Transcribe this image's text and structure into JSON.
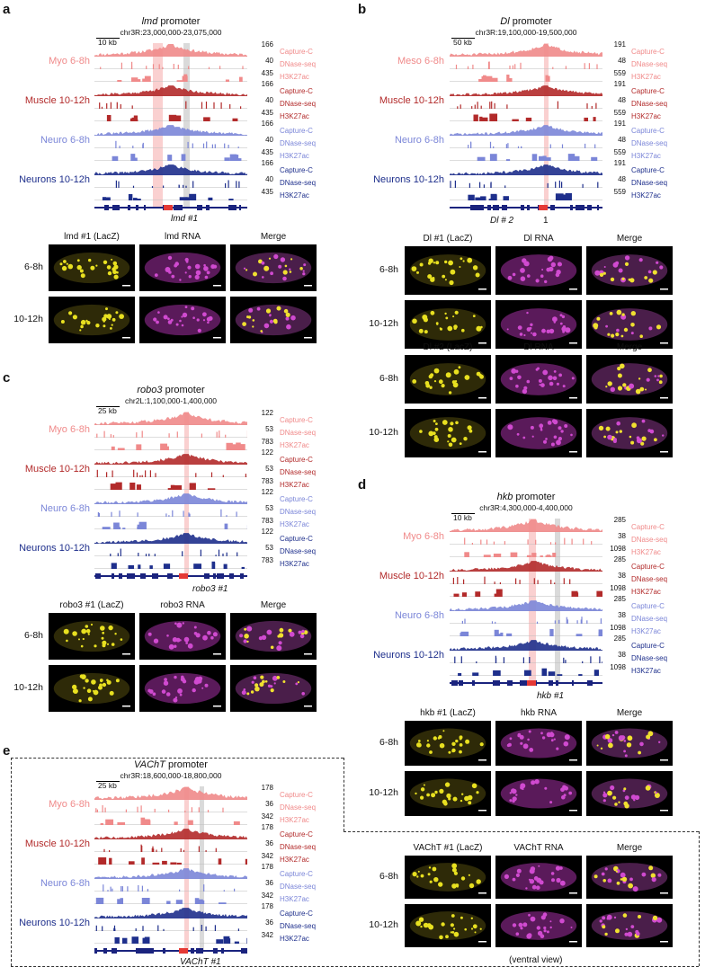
{
  "panels": {
    "a": {
      "letter": "a",
      "title_gene": "lmd",
      "title_suffix": " promoter",
      "coords": "chr3R:23,000,000-23,075,000",
      "scale": "10 kb",
      "enhancer_label": "lmd #1",
      "rows": [
        {
          "name": "Myo 6-8h",
          "color": "#f08a8a",
          "tracks": [
            {
              "label": "Capture-C",
              "max": "166"
            },
            {
              "label": "DNase-seq",
              "max": "40"
            },
            {
              "label": "H3K27ac",
              "max": "435"
            }
          ]
        },
        {
          "name": "Muscle 10-12h",
          "color": "#b22a2a",
          "tracks": [
            {
              "label": "Capture-C",
              "max": "166"
            },
            {
              "label": "DNase-seq",
              "max": "40"
            },
            {
              "label": "H3K27ac",
              "max": "435"
            }
          ]
        },
        {
          "name": "Neuro 6-8h",
          "color": "#7b86d8",
          "tracks": [
            {
              "label": "Capture-C",
              "max": "166"
            },
            {
              "label": "DNase-seq",
              "max": "40"
            },
            {
              "label": "H3K27ac",
              "max": "435"
            }
          ]
        },
        {
          "name": "Neurons 10-12h",
          "color": "#1e2f8c",
          "tracks": [
            {
              "label": "Capture-C",
              "max": "166"
            },
            {
              "label": "DNase-seq",
              "max": "40"
            },
            {
              "label": "H3K27ac",
              "max": "435"
            }
          ]
        }
      ],
      "images": {
        "headers": [
          "lmd #1 (LacZ)",
          "lmd RNA",
          "Merge"
        ],
        "times": [
          "6-8h",
          "10-12h"
        ]
      }
    },
    "b": {
      "letter": "b",
      "title_gene": "Dl",
      "title_suffix": " promoter",
      "coords": "chr3R:19,100,000-19,500,000",
      "scale": "50 kb",
      "enhancer_labels": [
        "Dl # 2",
        "1"
      ],
      "rows": [
        {
          "name": "Meso 6-8h",
          "color": "#f08a8a",
          "tracks": [
            {
              "label": "Capture-C",
              "max": "191"
            },
            {
              "label": "DNase-seq",
              "max": "48"
            },
            {
              "label": "H3K27ac",
              "max": "559"
            }
          ]
        },
        {
          "name": "Muscle 10-12h",
          "color": "#b22a2a",
          "tracks": [
            {
              "label": "Capture-C",
              "max": "191"
            },
            {
              "label": "DNase-seq",
              "max": "48"
            },
            {
              "label": "H3K27ac",
              "max": "559"
            }
          ]
        },
        {
          "name": "Neuro 6-8h",
          "color": "#7b86d8",
          "tracks": [
            {
              "label": "Capture-C",
              "max": "191"
            },
            {
              "label": "DNase-seq",
              "max": "48"
            },
            {
              "label": "H3K27ac",
              "max": "559"
            }
          ]
        },
        {
          "name": "Neurons 10-12h",
          "color": "#1e2f8c",
          "tracks": [
            {
              "label": "Capture-C",
              "max": "191"
            },
            {
              "label": "DNase-seq",
              "max": "48"
            },
            {
              "label": "H3K27ac",
              "max": "559"
            }
          ]
        }
      ],
      "images1": {
        "headers": [
          "Dl #1 (LacZ)",
          "Dl RNA",
          "Merge"
        ],
        "times": [
          "6-8h",
          "10-12h"
        ]
      },
      "images2": {
        "headers": [
          "Dl #2 (LacZ)",
          "Dl RNA",
          "Merge"
        ],
        "times": [
          "6-8h",
          "10-12h"
        ]
      }
    },
    "c": {
      "letter": "c",
      "title_gene": "robo3",
      "title_suffix": " promoter",
      "coords": "chr2L:1,100,000-1,400,000",
      "scale": "25 kb",
      "enhancer_label": "robo3 #1",
      "rows": [
        {
          "name": "Myo 6-8h",
          "color": "#f08a8a",
          "tracks": [
            {
              "label": "Capture-C",
              "max": "122"
            },
            {
              "label": "DNase-seq",
              "max": "53"
            },
            {
              "label": "H3K27ac",
              "max": "783"
            }
          ]
        },
        {
          "name": "Muscle 10-12h",
          "color": "#b22a2a",
          "tracks": [
            {
              "label": "Capture-C",
              "max": "122"
            },
            {
              "label": "DNase-seq",
              "max": "53"
            },
            {
              "label": "H3K27ac",
              "max": "783"
            }
          ]
        },
        {
          "name": "Neuro 6-8h",
          "color": "#7b86d8",
          "tracks": [
            {
              "label": "Capture-C",
              "max": "122"
            },
            {
              "label": "DNase-seq",
              "max": "53"
            },
            {
              "label": "H3K27ac",
              "max": "783"
            }
          ]
        },
        {
          "name": "Neurons 10-12h",
          "color": "#1e2f8c",
          "tracks": [
            {
              "label": "Capture-C",
              "max": "122"
            },
            {
              "label": "DNase-seq",
              "max": "53"
            },
            {
              "label": "H3K27ac",
              "max": "783"
            }
          ]
        }
      ],
      "images": {
        "headers": [
          "robo3 #1 (LacZ)",
          "robo3 RNA",
          "Merge"
        ],
        "times": [
          "6-8h",
          "10-12h"
        ]
      }
    },
    "d": {
      "letter": "d",
      "title_gene": "hkb",
      "title_suffix": " promoter",
      "coords": "chr3R:4,300,000-4,400,000",
      "scale": "10 kb",
      "enhancer_label": "hkb #1",
      "rows": [
        {
          "name": "Myo 6-8h",
          "color": "#f08a8a",
          "tracks": [
            {
              "label": "Capture-C",
              "max": "285"
            },
            {
              "label": "DNase-seq",
              "max": "38"
            },
            {
              "label": "H3K27ac",
              "max": "1098"
            }
          ]
        },
        {
          "name": "Muscle 10-12h",
          "color": "#b22a2a",
          "tracks": [
            {
              "label": "Capture-C",
              "max": "285"
            },
            {
              "label": "DNase-seq",
              "max": "38"
            },
            {
              "label": "H3K27ac",
              "max": "1098"
            }
          ]
        },
        {
          "name": "Neuro 6-8h",
          "color": "#7b86d8",
          "tracks": [
            {
              "label": "Capture-C",
              "max": "285"
            },
            {
              "label": "DNase-seq",
              "max": "38"
            },
            {
              "label": "H3K27ac",
              "max": "1098"
            }
          ]
        },
        {
          "name": "Neurons 10-12h",
          "color": "#1e2f8c",
          "tracks": [
            {
              "label": "Capture-C",
              "max": "285"
            },
            {
              "label": "DNase-seq",
              "max": "38"
            },
            {
              "label": "H3K27ac",
              "max": "1098"
            }
          ]
        }
      ],
      "images": {
        "headers": [
          "hkb #1 (LacZ)",
          "hkb RNA",
          "Merge"
        ],
        "times": [
          "6-8h",
          "10-12h"
        ]
      }
    },
    "e": {
      "letter": "e",
      "title_gene": "VAChT",
      "title_suffix": " promoter",
      "coords": "chr3R:18,600,000-18,800,000",
      "scale": "25 kb",
      "enhancer_label": "VAChT #1",
      "rows": [
        {
          "name": "Myo 6-8h",
          "color": "#f08a8a",
          "tracks": [
            {
              "label": "Capture-C",
              "max": "178"
            },
            {
              "label": "DNase-seq",
              "max": "36"
            },
            {
              "label": "H3K27ac",
              "max": "342"
            }
          ]
        },
        {
          "name": "Muscle 10-12h",
          "color": "#b22a2a",
          "tracks": [
            {
              "label": "Capture-C",
              "max": "178"
            },
            {
              "label": "DNase-seq",
              "max": "36"
            },
            {
              "label": "H3K27ac",
              "max": "342"
            }
          ]
        },
        {
          "name": "Neuro 6-8h",
          "color": "#7b86d8",
          "tracks": [
            {
              "label": "Capture-C",
              "max": "178"
            },
            {
              "label": "DNase-seq",
              "max": "36"
            },
            {
              "label": "H3K27ac",
              "max": "342"
            }
          ]
        },
        {
          "name": "Neurons 10-12h",
          "color": "#1e2f8c",
          "tracks": [
            {
              "label": "Capture-C",
              "max": "178"
            },
            {
              "label": "DNase-seq",
              "max": "36"
            },
            {
              "label": "H3K27ac",
              "max": "342"
            }
          ]
        }
      ],
      "images": {
        "headers": [
          "VAChT #1 (LacZ)",
          "VAChT RNA",
          "Merge"
        ],
        "times": [
          "6-8h",
          "10-12h"
        ],
        "note": "(ventral view)"
      }
    }
  }
}
